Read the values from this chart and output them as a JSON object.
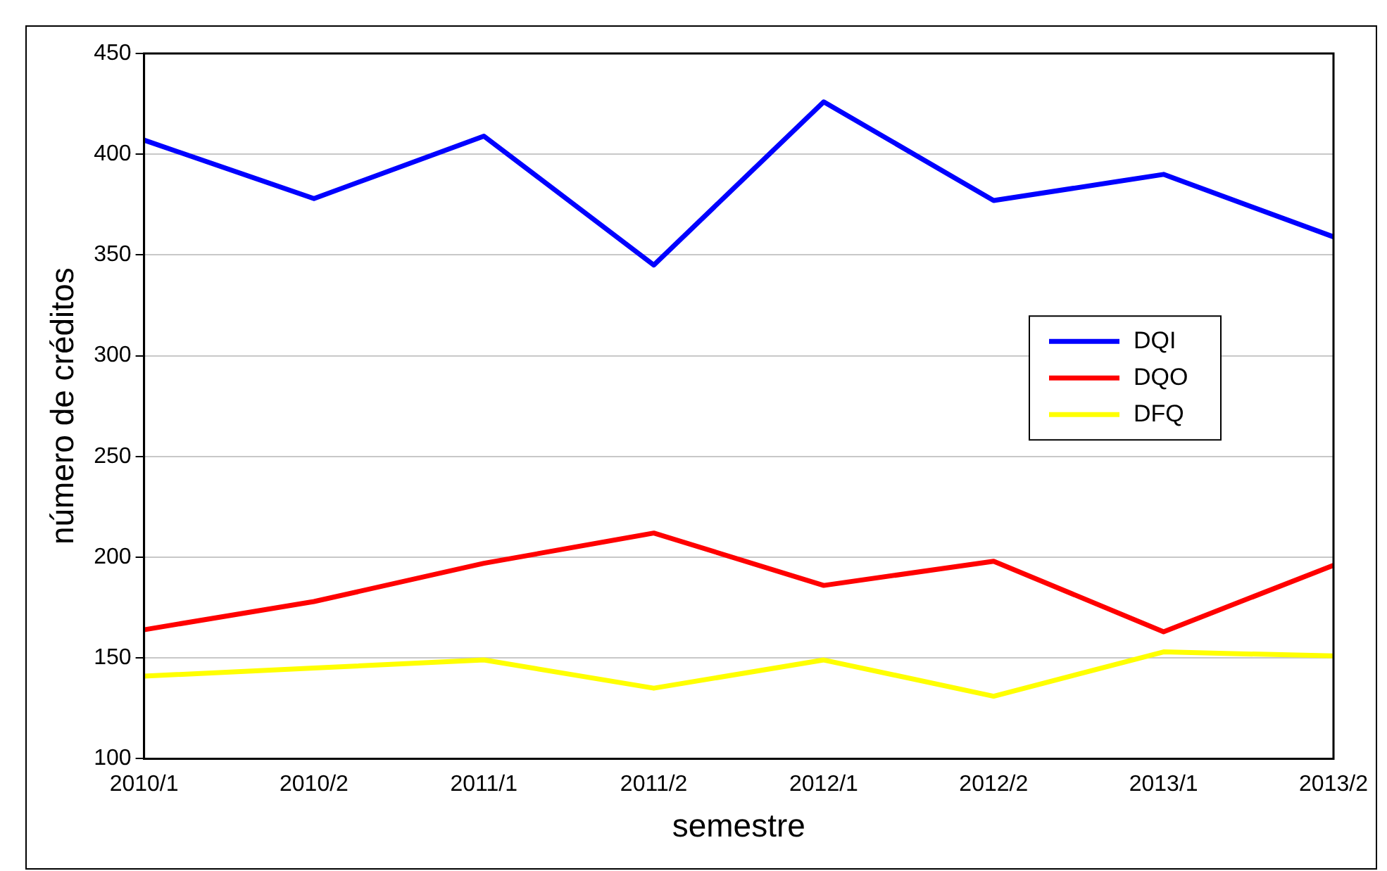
{
  "chart_data": {
    "type": "line",
    "xlabel": "semestre",
    "ylabel": "número de créditos",
    "categories": [
      "2010/1",
      "2010/2",
      "2011/1",
      "2011/2",
      "2012/1",
      "2012/2",
      "2013/1",
      "2013/2"
    ],
    "series": [
      {
        "name": "DQI",
        "color": "#0000ff",
        "values": [
          407,
          378,
          409,
          345,
          426,
          377,
          390,
          359
        ]
      },
      {
        "name": "DQO",
        "color": "#ff0000",
        "values": [
          164,
          178,
          197,
          212,
          186,
          198,
          163,
          196
        ]
      },
      {
        "name": "DFQ",
        "color": "#ffff00",
        "values": [
          141,
          145,
          149,
          135,
          149,
          131,
          153,
          151
        ]
      }
    ],
    "ylim": [
      100,
      450
    ],
    "yticks": [
      100,
      150,
      200,
      250,
      300,
      350,
      400,
      450
    ],
    "grid": "y",
    "legend": "right",
    "marker": "none",
    "line_style": "solid"
  }
}
